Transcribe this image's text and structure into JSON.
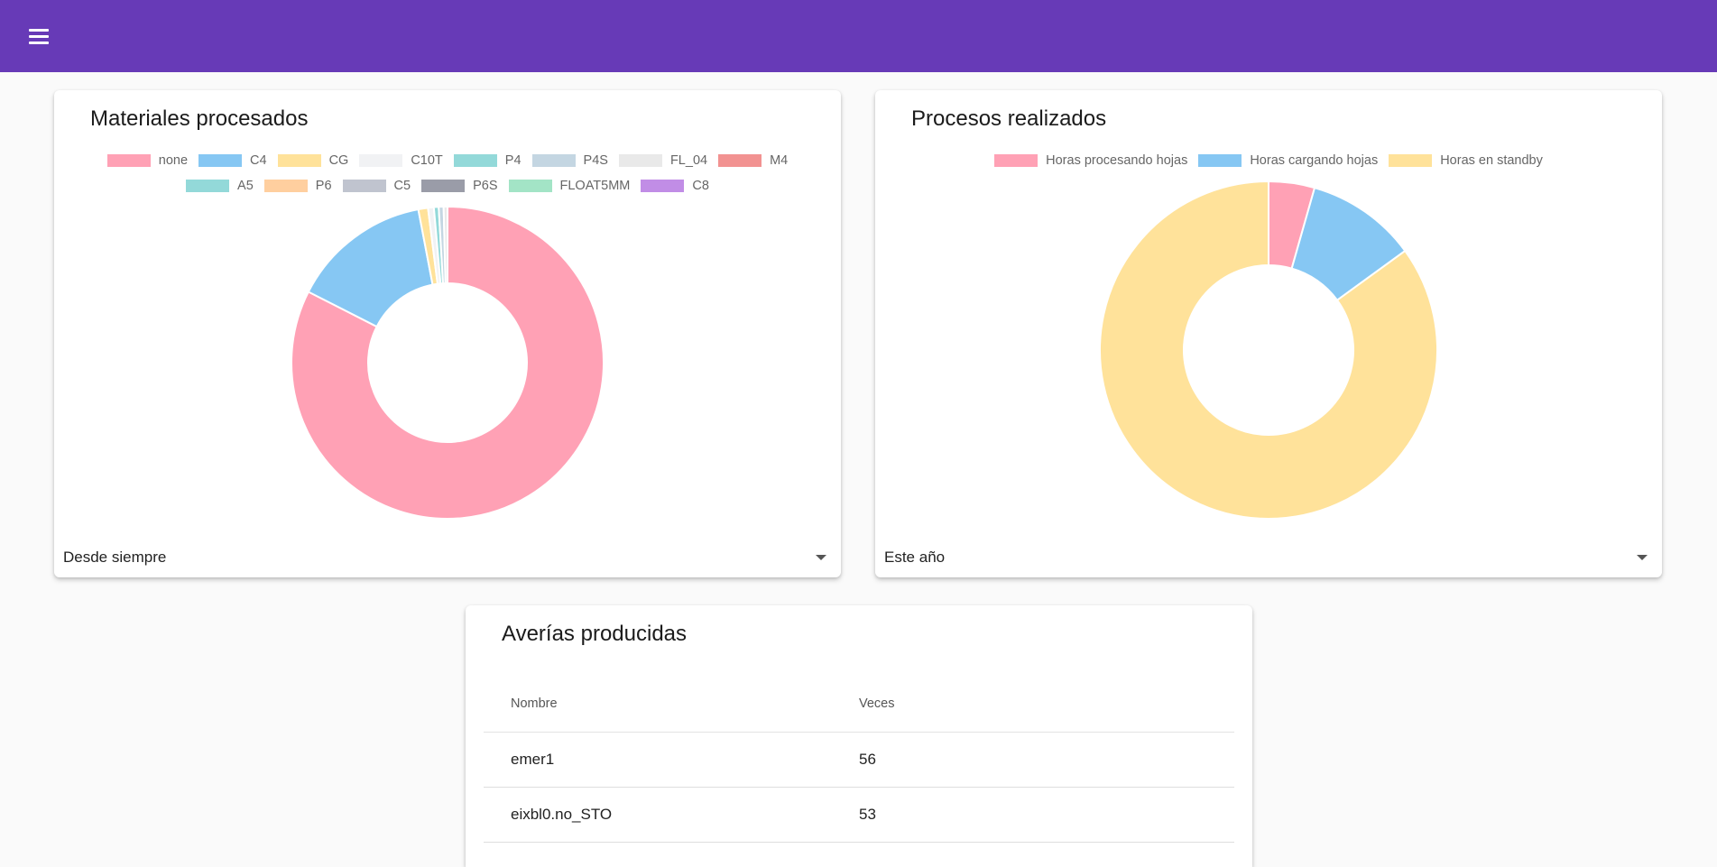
{
  "header": {
    "menu_icon": "menu-icon",
    "background_color": "#673ab7"
  },
  "materials_card": {
    "title": "Materiales procesados",
    "filter_value": "Desde siempre",
    "chart_data": {
      "type": "pie",
      "title": "Materiales procesados",
      "donut": true,
      "legend_position": "top",
      "legend_rows": [
        [
          "none",
          "C4",
          "CG",
          "C10T",
          "P4",
          "P4S",
          "FL_04",
          "M4"
        ],
        [
          "A5",
          "P6",
          "C5",
          "P6S",
          "FLOAT5MM",
          "C8"
        ]
      ],
      "categories": [
        "none",
        "C4",
        "CG",
        "C10T",
        "P4",
        "P4S",
        "FL_04",
        "M4",
        "A5",
        "P6",
        "C5",
        "P6S",
        "FLOAT5MM",
        "C8"
      ],
      "values": [
        82.5,
        14.5,
        1.0,
        0.6,
        0.5,
        0.5,
        0.4,
        0.0,
        0.0,
        0.0,
        0.0,
        0.0,
        0.0,
        0.0
      ],
      "colors": [
        "#ffa1b5",
        "#86c7f3",
        "#ffe29a",
        "#f1f2f4",
        "#93d9d9",
        "#c4d6e2",
        "#e9e9e9",
        "#f29291",
        "#93d9d9",
        "#ffcf9f",
        "#c0c4cf",
        "#9a9ca8",
        "#a3e4c6",
        "#c18de6"
      ]
    }
  },
  "processes_card": {
    "title": "Procesos realizados",
    "filter_value": "Este año",
    "chart_data": {
      "type": "pie",
      "title": "Procesos realizados",
      "donut": true,
      "legend_position": "top",
      "legend_rows": [
        [
          "Horas procesando hojas",
          "Horas cargando hojas",
          "Horas en standby"
        ]
      ],
      "categories": [
        "Horas procesando hojas",
        "Horas cargando hojas",
        "Horas en standby"
      ],
      "values": [
        4.4,
        10.6,
        85.0
      ],
      "colors": [
        "#ffa1b5",
        "#86c7f3",
        "#ffe29a"
      ]
    }
  },
  "faults_card": {
    "title": "Averías producidas",
    "columns": [
      "Nombre",
      "Veces"
    ],
    "rows": [
      [
        "emer1",
        "56"
      ],
      [
        "eixbl0.no_STO",
        "53"
      ]
    ]
  }
}
